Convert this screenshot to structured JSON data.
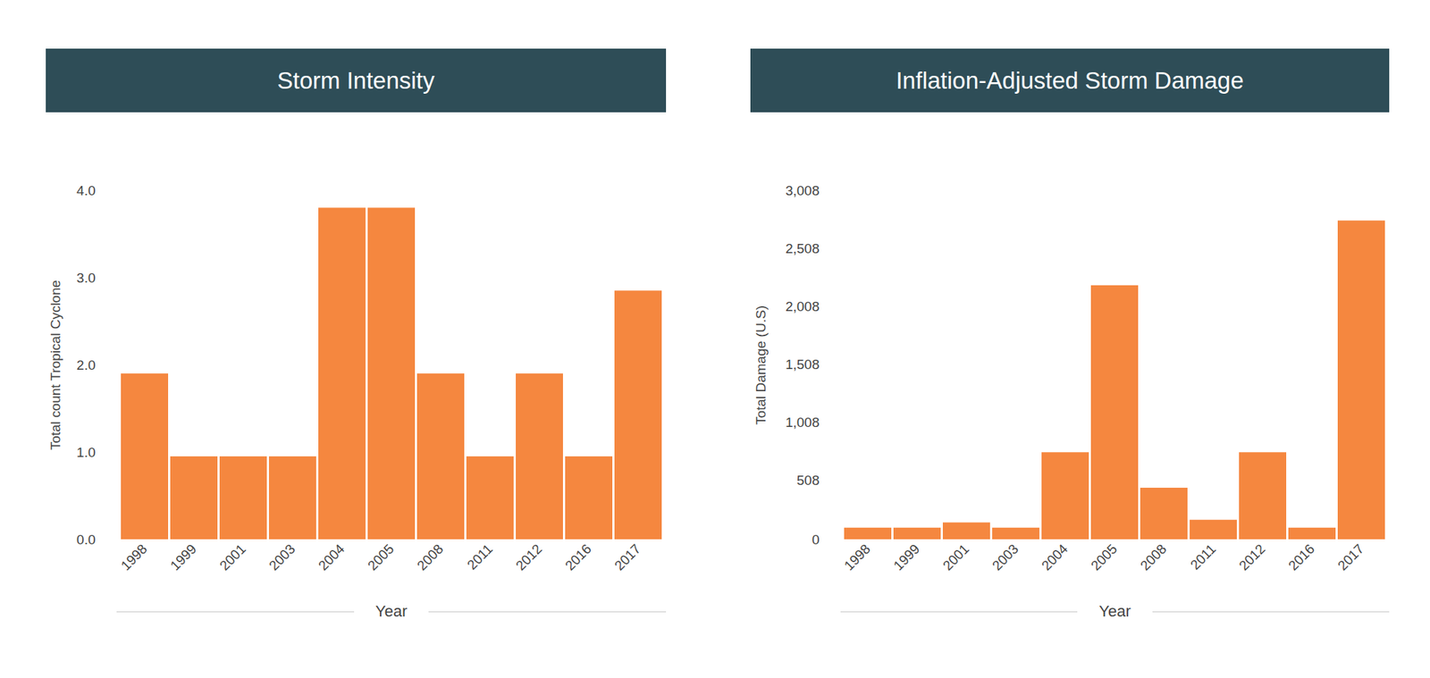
{
  "chart_data": [
    {
      "type": "bar",
      "title": "Storm Intensity",
      "x_label": "Year",
      "y_label": "Total count Tropical Cyclone",
      "categories": [
        "1998",
        "1999",
        "2001",
        "2003",
        "2004",
        "2005",
        "2008",
        "2011",
        "2012",
        "2016",
        "2017"
      ],
      "values": [
        1.9,
        0.95,
        0.95,
        0.95,
        3.8,
        3.8,
        1.9,
        0.95,
        1.9,
        0.95,
        2.85
      ],
      "color": "#f5873f",
      "ylim": [
        0,
        4
      ],
      "yticks": [
        0,
        1,
        2,
        3,
        4
      ],
      "grid": false
    },
    {
      "type": "bar",
      "title": "Inflation-Adjusted Storm Damage",
      "x_label": "Year",
      "y_label": "Total Damage (U.S)",
      "categories": [
        "1998",
        "1999",
        "2001",
        "2003",
        "2004",
        "2005",
        "2008",
        "2011",
        "2012",
        "2016",
        "2017"
      ],
      "values": [
        100,
        100,
        145,
        100,
        750,
        2189,
        444,
        168,
        750,
        100,
        2747
      ],
      "color": "#f5873f",
      "ylim": [
        0,
        3008
      ],
      "yticks": [
        0,
        508,
        1008,
        1508,
        2008,
        2508,
        3008
      ],
      "grid": false
    }
  ]
}
